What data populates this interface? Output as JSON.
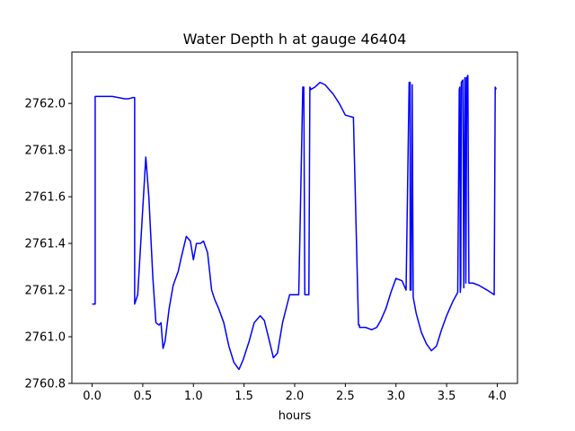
{
  "chart_data": {
    "type": "line",
    "title": "Water Depth h at gauge 46404",
    "xlabel": "hours",
    "ylabel": "",
    "xlim": [
      -0.2,
      4.2
    ],
    "ylim": [
      2760.8,
      2762.22
    ],
    "xticks": [
      0.0,
      0.5,
      1.0,
      1.5,
      2.0,
      2.5,
      3.0,
      3.5,
      4.0
    ],
    "xtick_labels": [
      "0.0",
      "0.5",
      "1.0",
      "1.5",
      "2.0",
      "2.5",
      "3.0",
      "3.5",
      "4.0"
    ],
    "yticks": [
      2760.8,
      2761.0,
      2761.2,
      2761.4,
      2761.6,
      2761.8,
      2762.0
    ],
    "ytick_labels": [
      "2760.8",
      "2761.0",
      "2761.2",
      "2761.4",
      "2761.6",
      "2761.8",
      "2762.0"
    ],
    "grid": false,
    "series": [
      {
        "color": "#0000ff",
        "x": [
          0.0,
          0.03,
          0.03,
          0.2,
          0.32,
          0.36,
          0.4,
          0.42,
          0.42,
          0.45,
          0.5,
          0.53,
          0.56,
          0.6,
          0.63,
          0.66,
          0.68,
          0.7,
          0.72,
          0.76,
          0.8,
          0.85,
          0.88,
          0.93,
          0.97,
          1.0,
          1.03,
          1.07,
          1.1,
          1.14,
          1.16,
          1.18,
          1.21,
          1.25,
          1.3,
          1.35,
          1.4,
          1.45,
          1.49,
          1.55,
          1.6,
          1.66,
          1.7,
          1.74,
          1.79,
          1.83,
          1.88,
          1.95,
          2.0,
          2.04,
          2.08,
          2.09,
          2.1,
          2.14,
          2.15,
          2.15,
          2.16,
          2.16,
          2.2,
          2.25,
          2.3,
          2.34,
          2.38,
          2.44,
          2.5,
          2.58,
          2.63,
          2.64,
          2.64,
          2.7,
          2.76,
          2.81,
          2.85,
          2.9,
          2.95,
          3.0,
          3.06,
          3.1,
          3.13,
          3.14,
          3.14,
          3.15,
          3.16,
          3.16,
          3.17,
          3.2,
          3.25,
          3.3,
          3.35,
          3.4,
          3.45,
          3.5,
          3.56,
          3.61,
          3.625,
          3.63,
          3.635,
          3.64,
          3.645,
          3.66,
          3.67,
          3.68,
          3.685,
          3.69,
          3.7,
          3.71,
          3.72,
          3.72,
          3.73,
          3.76,
          3.82,
          3.9,
          3.97,
          3.98,
          3.99
        ],
        "values": [
          2761.14,
          2761.14,
          2762.03,
          2762.03,
          2762.02,
          2762.02,
          2762.025,
          2762.025,
          2761.14,
          2761.18,
          2761.55,
          2761.77,
          2761.6,
          2761.25,
          2761.06,
          2761.05,
          2761.06,
          2760.95,
          2760.98,
          2761.12,
          2761.22,
          2761.28,
          2761.34,
          2761.43,
          2761.41,
          2761.33,
          2761.4,
          2761.4,
          2761.41,
          2761.36,
          2761.28,
          2761.2,
          2761.16,
          2761.12,
          2761.06,
          2760.96,
          2760.89,
          2760.86,
          2760.9,
          2760.98,
          2761.06,
          2761.09,
          2761.07,
          2761.0,
          2760.91,
          2760.93,
          2761.06,
          2761.18,
          2761.18,
          2761.18,
          2762.07,
          2762.07,
          2761.18,
          2761.18,
          2762.07,
          2762.07,
          2762.06,
          2762.06,
          2762.07,
          2762.09,
          2762.08,
          2762.06,
          2762.04,
          2762.0,
          2761.95,
          2761.94,
          2761.05,
          2761.05,
          2761.04,
          2761.04,
          2761.03,
          2761.04,
          2761.07,
          2761.12,
          2761.19,
          2761.25,
          2761.24,
          2761.2,
          2762.09,
          2762.09,
          2761.2,
          2761.2,
          2762.08,
          2762.08,
          2761.17,
          2761.1,
          2761.02,
          2760.97,
          2760.94,
          2760.96,
          2761.03,
          2761.09,
          2761.15,
          2761.19,
          2762.06,
          2762.07,
          2761.19,
          2761.22,
          2762.09,
          2762.1,
          2761.21,
          2762.11,
          2762.11,
          2761.23,
          2762.11,
          2762.12,
          2761.23,
          2761.23,
          2761.23,
          2761.23,
          2761.22,
          2761.2,
          2761.18,
          2762.07,
          2762.06
        ]
      }
    ]
  }
}
